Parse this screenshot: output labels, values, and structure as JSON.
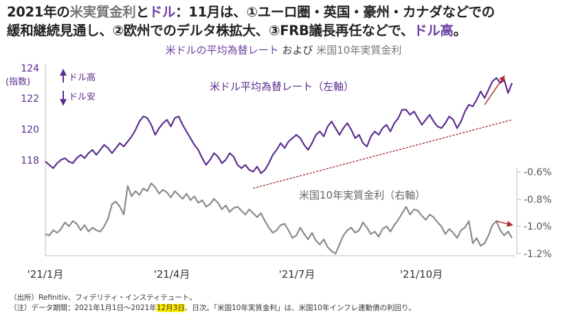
{
  "headline": {
    "line1_parts": [
      {
        "text": "2021年の",
        "style": "plain"
      },
      {
        "text": "米実質金利",
        "style": "gray"
      },
      {
        "text": "と",
        "style": "plain"
      },
      {
        "text": "ドル",
        "style": "purple"
      },
      {
        "text": "：11月は、①ユーロ圏・英国・豪州・カナダなどでの",
        "style": "plain"
      }
    ],
    "line2_parts": [
      {
        "text": "緩和継続見通し、②欧州でのデルタ株拡大、③FRB議長再任などで、",
        "style": "plain"
      },
      {
        "text": "ドル高",
        "style": "purple"
      },
      {
        "text": "。",
        "style": "plain"
      }
    ]
  },
  "subtitle": {
    "dollar": "米ドルの平均為替レート",
    "and": "および",
    "rate": "米国10年実質金利"
  },
  "chart_data": {
    "type": "line",
    "x_tick_labels": [
      "'21/1月",
      "'21/4月",
      "'21/7月",
      "'21/10月"
    ],
    "left_axis": {
      "unit_label": "(指数)",
      "ticks": [
        "124",
        "122",
        "120",
        "118"
      ],
      "range": [
        116.8,
        124
      ]
    },
    "right_axis": {
      "ticks": [
        "-0.6%",
        "-0.8%",
        "-1.0%",
        "-1.2%"
      ],
      "range": [
        -1.2,
        -0.52
      ]
    },
    "legend_up": "ドル高",
    "legend_down": "ドル安",
    "colors": {
      "dollar": "#5b2d8e",
      "rate": "#8a8a8a",
      "trend": "#9b1c1c",
      "arrow": "#b03030"
    },
    "series": [
      {
        "name": "米ドル平均為替レート（左軸）",
        "axis": "left",
        "values": [
          118.2,
          118,
          117.8,
          118.1,
          118.3,
          118.4,
          118.2,
          118.1,
          118.4,
          118.6,
          118.4,
          118.7,
          118.9,
          118.6,
          118.9,
          119.2,
          119.0,
          118.7,
          119.0,
          119.3,
          119.1,
          119.4,
          119.7,
          120.1,
          120.6,
          120.9,
          120.8,
          120.4,
          119.8,
          120.2,
          120.5,
          120.7,
          120.3,
          120.8,
          120.9,
          120.4,
          120.0,
          119.6,
          119.2,
          118.9,
          118.4,
          118.0,
          118.3,
          118.7,
          118.5,
          118.1,
          118.3,
          118.7,
          118.5,
          118.0,
          117.8,
          118.0,
          117.7,
          117.6,
          117.9,
          117.5,
          117.7,
          118.1,
          118.6,
          118.9,
          119.3,
          119.0,
          119.4,
          119.6,
          119.8,
          119.6,
          119.2,
          118.9,
          119.3,
          119.8,
          120.0,
          119.7,
          120.3,
          120.6,
          120.2,
          119.8,
          120.2,
          120.5,
          120.1,
          119.6,
          119.8,
          119.3,
          119.1,
          119.7,
          120.0,
          119.8,
          120.2,
          120.4,
          120.0,
          120.5,
          120.8,
          121.3,
          121.3,
          121.0,
          121.2,
          120.8,
          120.4,
          120.7,
          121.0,
          120.6,
          120.3,
          120.2,
          120.5,
          120.9,
          120.7,
          120.2,
          120.6,
          121.2,
          121.6,
          121.5,
          121.9,
          122.4,
          122.0,
          122.5,
          123.0,
          123.2,
          122.9,
          123.1,
          122.3,
          122.9
        ]
      },
      {
        "name": "米国10年実質金利（右軸）",
        "axis": "right",
        "values": [
          -1.05,
          -1.06,
          -1.02,
          -1.04,
          -1.01,
          -0.96,
          -0.99,
          -0.95,
          -0.97,
          -1.02,
          -0.98,
          -1.03,
          -1.0,
          -1.02,
          -1.03,
          -0.99,
          -0.93,
          -0.82,
          -0.8,
          -0.84,
          -0.9,
          -0.68,
          -0.76,
          -0.72,
          -0.75,
          -0.7,
          -0.72,
          -0.66,
          -0.69,
          -0.74,
          -0.71,
          -0.73,
          -0.77,
          -0.72,
          -0.75,
          -0.78,
          -0.74,
          -0.79,
          -0.76,
          -0.81,
          -0.79,
          -0.84,
          -0.82,
          -0.78,
          -0.81,
          -0.86,
          -0.83,
          -0.88,
          -0.85,
          -0.84,
          -0.87,
          -0.9,
          -0.86,
          -0.89,
          -0.92,
          -0.89,
          -0.95,
          -1.0,
          -1.04,
          -1.02,
          -0.98,
          -0.97,
          -1.02,
          -1.08,
          -1.06,
          -1.0,
          -1.05,
          -1.09,
          -1.04,
          -1.1,
          -1.13,
          -1.09,
          -1.15,
          -1.18,
          -1.2,
          -1.13,
          -1.06,
          -1.02,
          -1.0,
          -1.04,
          -1.02,
          -0.96,
          -1.0,
          -1.05,
          -1.03,
          -1.07,
          -1.01,
          -0.99,
          -1.03,
          -0.98,
          -0.94,
          -0.89,
          -0.84,
          -0.9,
          -0.86,
          -0.87,
          -0.91,
          -0.94,
          -0.9,
          -0.92,
          -0.96,
          -0.99,
          -1.05,
          -1.01,
          -1.04,
          -1.08,
          -1.02,
          -1.0,
          -0.95,
          -1.12,
          -1.08,
          -1.14,
          -1.12,
          -1.06,
          -0.98,
          -0.95,
          -1.02,
          -1.06,
          -1.03,
          -1.08
        ]
      }
    ],
    "annotations": [
      {
        "text": "米ドル平均為替レート（左軸）",
        "series": "dollar"
      },
      {
        "text": "米国10年実質金利（右軸）",
        "series": "rate"
      }
    ],
    "trendline": {
      "axis": "left",
      "from": {
        "i": 53,
        "v": 116.6
      },
      "to": {
        "i": 119,
        "v": 120.7
      }
    },
    "arrows": [
      {
        "axis": "left",
        "from": {
          "i": 112,
          "v": 121.6
        },
        "to": {
          "i": 117,
          "v": 123.3
        }
      },
      {
        "axis": "right",
        "from": {
          "i": 115,
          "v": -0.95
        },
        "to": {
          "i": 119,
          "v": -0.98
        }
      }
    ]
  },
  "notes": {
    "source": "（出所）Refinitiv、フィデリティ・インスティテュート。",
    "note_pre": "（注）データ期間：2021年1月1日～2021年",
    "note_highlight": "12月3日",
    "note_post": "、日次。「米国10年実質金利」は、米国10年インフレ連動債の利回り。"
  }
}
